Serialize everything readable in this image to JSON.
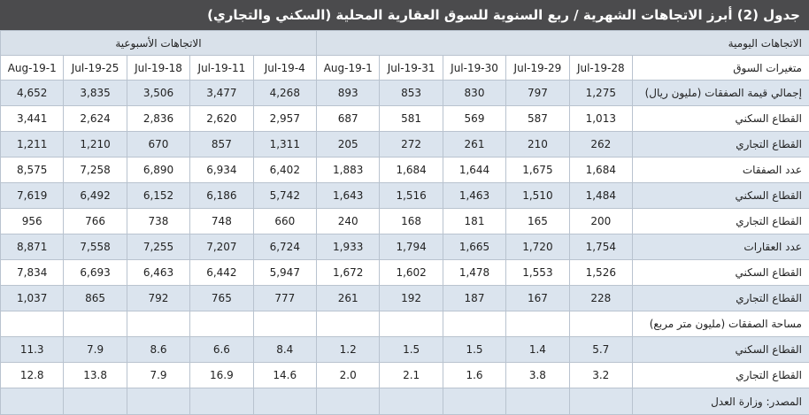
{
  "title": "جدول (2) أبرز الاتجاهات الشهرية / ربع السنوية للسوق العقارية المحلية (السكني والتجاري)",
  "header": {
    "daily": "الاتجاهات اليومية",
    "weekly": "الاتجاهات الأسبوعية"
  },
  "columns": {
    "label": "متغيرات السوق",
    "dates": [
      "28-Jul-19",
      "29-Jul-19",
      "30-Jul-19",
      "31-Jul-19",
      "1-Aug-19",
      "4-Jul-19",
      "11-Jul-19",
      "18-Jul-19",
      "25-Jul-19",
      "1-Aug-19"
    ]
  },
  "rows": [
    {
      "label": "إجمالي قيمة الصفقات (مليون ريال)",
      "values": [
        "1,275",
        "797",
        "830",
        "853",
        "893",
        "4,268",
        "3,477",
        "3,506",
        "3,835",
        "4,652"
      ]
    },
    {
      "label": "القطاع السكني",
      "values": [
        "1,013",
        "587",
        "569",
        "581",
        "687",
        "2,957",
        "2,620",
        "2,836",
        "2,624",
        "3,441"
      ]
    },
    {
      "label": "القطاع التجاري",
      "values": [
        "262",
        "210",
        "261",
        "272",
        "205",
        "1,311",
        "857",
        "670",
        "1,210",
        "1,211"
      ]
    },
    {
      "label": "عدد الصفقات",
      "values": [
        "1,684",
        "1,675",
        "1,644",
        "1,684",
        "1,883",
        "6,402",
        "6,934",
        "6,890",
        "7,258",
        "8,575"
      ]
    },
    {
      "label": "القطاع السكني",
      "values": [
        "1,484",
        "1,510",
        "1,463",
        "1,516",
        "1,643",
        "5,742",
        "6,186",
        "6,152",
        "6,492",
        "7,619"
      ]
    },
    {
      "label": "القطاع التجاري",
      "values": [
        "200",
        "165",
        "181",
        "168",
        "240",
        "660",
        "748",
        "738",
        "766",
        "956"
      ]
    },
    {
      "label": "عدد العقارات",
      "values": [
        "1,754",
        "1,720",
        "1,665",
        "1,794",
        "1,933",
        "6,724",
        "7,207",
        "7,255",
        "7,558",
        "8,871"
      ]
    },
    {
      "label": "القطاع السكني",
      "values": [
        "1,526",
        "1,553",
        "1,478",
        "1,602",
        "1,672",
        "5,947",
        "6,442",
        "6,463",
        "6,693",
        "7,834"
      ]
    },
    {
      "label": "القطاع التجاري",
      "values": [
        "228",
        "167",
        "187",
        "192",
        "261",
        "777",
        "765",
        "792",
        "865",
        "1,037"
      ]
    },
    {
      "label": "مساحة الصفقات (مليون متر مربع)",
      "values": []
    },
    {
      "label": "القطاع السكني",
      "values": [
        "5.7",
        "1.4",
        "1.5",
        "1.5",
        "1.2",
        "8.4",
        "6.6",
        "8.6",
        "7.9",
        "11.3"
      ]
    },
    {
      "label": "القطاع التجاري",
      "values": [
        "3.2",
        "3.8",
        "1.6",
        "2.1",
        "2.0",
        "14.6",
        "16.9",
        "7.9",
        "13.8",
        "12.8"
      ]
    }
  ],
  "source": "المصدر: وزارة العدل"
}
